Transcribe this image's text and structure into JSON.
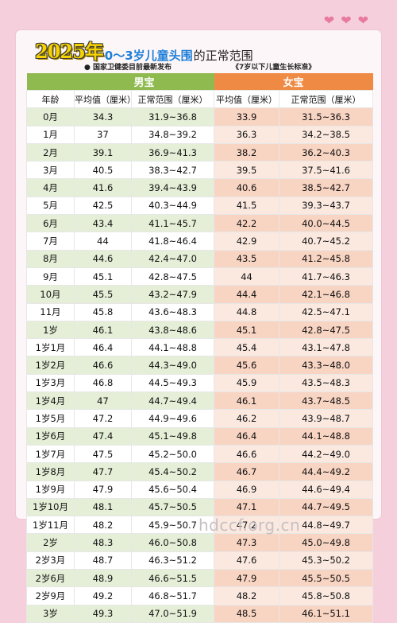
{
  "title": {
    "year": "2025年",
    "range": "0～3岁儿童头围",
    "rest": "的正常范围"
  },
  "subtitle": {
    "left": "● 国家卫健委目前最新发布",
    "right": "《7岁以下儿童生长标准》"
  },
  "groups": {
    "boy": "男宝",
    "girl": "女宝"
  },
  "headers": {
    "age": "年龄",
    "boy_avg": "平均值（厘米）",
    "boy_range": "正常范围（厘米）",
    "girl_avg": "平均值（厘米）",
    "girl_range": "正常范围（厘米）"
  },
  "rows": [
    [
      "0月",
      "34.3",
      "31.9~36.8",
      "33.9",
      "31.5~36.3"
    ],
    [
      "1月",
      "37",
      "34.8~39.2",
      "36.3",
      "34.2~38.5"
    ],
    [
      "2月",
      "39.1",
      "36.9~41.3",
      "38.2",
      "36.2~40.3"
    ],
    [
      "3月",
      "40.5",
      "38.3~42.7",
      "39.5",
      "37.5~41.6"
    ],
    [
      "4月",
      "41.6",
      "39.4~43.9",
      "40.6",
      "38.5~42.7"
    ],
    [
      "5月",
      "42.5",
      "40.3~44.9",
      "41.5",
      "39.3~43.7"
    ],
    [
      "6月",
      "43.4",
      "41.1~45.7",
      "42.2",
      "40.0~44.5"
    ],
    [
      "7月",
      "44",
      "41.8~46.4",
      "42.9",
      "40.7~45.2"
    ],
    [
      "8月",
      "44.6",
      "42.4~47.0",
      "43.5",
      "41.2~45.8"
    ],
    [
      "9月",
      "45.1",
      "42.8~47.5",
      "44",
      "41.7~46.3"
    ],
    [
      "10月",
      "45.5",
      "43.2~47.9",
      "44.4",
      "42.1~46.8"
    ],
    [
      "11月",
      "45.8",
      "43.6~48.3",
      "44.8",
      "42.5~47.1"
    ],
    [
      "1岁",
      "46.1",
      "43.8~48.6",
      "45.1",
      "42.8~47.5"
    ],
    [
      "1岁1月",
      "46.4",
      "44.1~48.8",
      "45.4",
      "43.1~47.8"
    ],
    [
      "1岁2月",
      "46.6",
      "44.3~49.0",
      "45.6",
      "43.3~48.0"
    ],
    [
      "1岁3月",
      "46.8",
      "44.5~49.3",
      "45.9",
      "43.5~48.3"
    ],
    [
      "1岁4月",
      "47",
      "44.7~49.4",
      "46.1",
      "43.7~48.5"
    ],
    [
      "1岁5月",
      "47.2",
      "44.9~49.6",
      "46.2",
      "43.9~48.7"
    ],
    [
      "1岁6月",
      "47.4",
      "45.1~49.8",
      "46.4",
      "44.1~48.8"
    ],
    [
      "1岁7月",
      "47.5",
      "45.2~50.0",
      "46.6",
      "44.2~49.0"
    ],
    [
      "1岁8月",
      "47.7",
      "45.4~50.2",
      "46.7",
      "44.4~49.2"
    ],
    [
      "1岁9月",
      "47.9",
      "45.6~50.4",
      "46.9",
      "44.6~49.4"
    ],
    [
      "1岁10月",
      "48.1",
      "45.7~50.5",
      "47.1",
      "44.7~49.5"
    ],
    [
      "1岁11月",
      "48.2",
      "45.9~50.7",
      "47.2",
      "44.8~49.7"
    ],
    [
      "2岁",
      "48.3",
      "46.0~50.8",
      "47.3",
      "45.0~49.8"
    ],
    [
      "2岁3月",
      "48.7",
      "46.3~51.2",
      "47.6",
      "45.3~50.2"
    ],
    [
      "2岁6月",
      "48.9",
      "46.6~51.5",
      "47.9",
      "45.5~50.5"
    ],
    [
      "2岁9月",
      "49.2",
      "46.8~51.7",
      "48.2",
      "45.8~50.8"
    ],
    [
      "3岁",
      "49.3",
      "47.0~51.9",
      "48.5",
      "46.1~51.1"
    ]
  ],
  "watermark": "hdccf.org.cn",
  "colors": {
    "boy": "#8fba4f",
    "girl": "#ef8a45",
    "background": "#f6cfdc",
    "title_blue": "#1f7fd8",
    "year_yellow": "#f5d200"
  },
  "icons": [
    "heart-icon",
    "heart-icon",
    "heart-icon"
  ]
}
